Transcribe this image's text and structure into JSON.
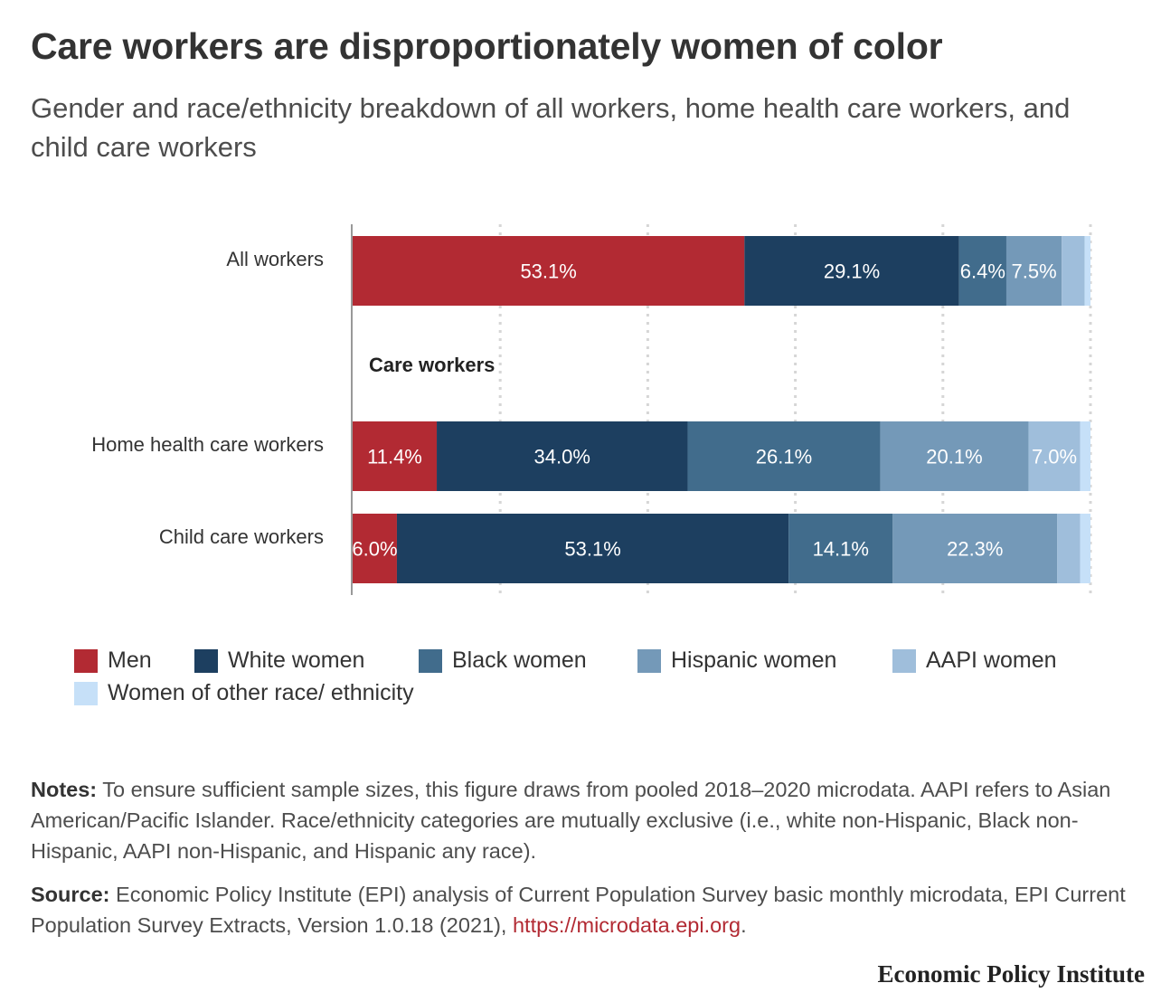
{
  "header": {
    "title": "Care workers are disproportionately women of color",
    "subtitle": "Gender and race/ethnicity breakdown of all workers, home health care workers, and child care workers"
  },
  "chart_data": {
    "type": "bar",
    "orientation": "horizontal",
    "stacked": true,
    "categories": [
      "All workers",
      "Home health care workers",
      "Child care workers"
    ],
    "group_label": "Care workers",
    "series": [
      {
        "name": "Men",
        "color": "#b22a33",
        "values": [
          53.1,
          11.4,
          6.0
        ],
        "labels": [
          "53.1%",
          "11.4%",
          "6.0%"
        ]
      },
      {
        "name": "White women",
        "color": "#1d3f60",
        "values": [
          29.1,
          34.0,
          53.1
        ],
        "labels": [
          "29.1%",
          "34.0%",
          "53.1%"
        ]
      },
      {
        "name": "Black women",
        "color": "#416c8c",
        "values": [
          6.4,
          26.1,
          14.1
        ],
        "labels": [
          "6.4%",
          "26.1%",
          "14.1%"
        ]
      },
      {
        "name": "Hispanic women",
        "color": "#7499b8",
        "values": [
          7.5,
          20.1,
          22.3
        ],
        "labels": [
          "7.5%",
          "20.1%",
          "22.3%"
        ]
      },
      {
        "name": "AAPI women",
        "color": "#9fbedb",
        "values": [
          3.1,
          7.0,
          3.1
        ],
        "labels": [
          "",
          "7.0%",
          ""
        ]
      },
      {
        "name": "Women of other race/ ethnicity",
        "color": "#c6e0f8",
        "values": [
          0.8,
          1.4,
          1.4
        ],
        "labels": [
          "",
          "",
          ""
        ]
      }
    ],
    "xlim": [
      0,
      100
    ],
    "grid": true,
    "legend_position": "bottom"
  },
  "notes": {
    "label": "Notes:",
    "text": " To ensure sufficient sample sizes, this figure draws from pooled 2018–2020 microdata. AAPI refers to Asian American/Pacific Islander. Race/ethnicity categories are mutually exclusive (i.e., white non-Hispanic, Black non-Hispanic, AAPI non-Hispanic, and Hispanic any race)."
  },
  "source": {
    "label": "Source:",
    "text": " Economic Policy Institute (EPI) analysis of Current Population Survey basic monthly microdata, EPI Current Population Survey Extracts, Version 1.0.18 (2021), ",
    "link": "https://microdata.epi.org",
    "end": "."
  },
  "brand": "Economic Policy Institute"
}
